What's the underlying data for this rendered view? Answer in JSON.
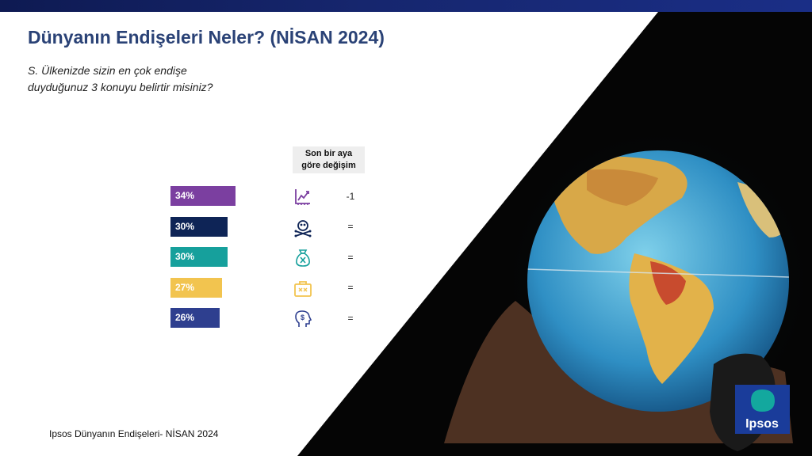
{
  "header": {
    "title": "Dünyanın Endişeleri Neler? (NİSAN 2024)",
    "question_line1": "S. Ülkenizde sizin en çok endişe",
    "question_line2": "duyduğunuz 3 konuyu belirtir misiniz?",
    "change_header_line1": "Son bir aya",
    "change_header_line2": "göre değişim"
  },
  "chart_data": {
    "type": "bar",
    "orientation": "horizontal",
    "categories": [
      "Enflasyon",
      "Suç",
      "Yoksulluk ve sosyal eşitsizlik",
      "İşsizlik",
      "Finansal/ siyasi yolsuzluk"
    ],
    "values": [
      34,
      30,
      30,
      27,
      26
    ],
    "value_labels": [
      "34%",
      "30%",
      "30%",
      "27%",
      "26%"
    ],
    "colors": [
      "#7b3fa0",
      "#0e2456",
      "#16a09c",
      "#f2c44f",
      "#2e3f8f"
    ],
    "changes": [
      "-1",
      "=",
      "=",
      "=",
      "="
    ],
    "icons": [
      "inflation-chart-icon",
      "skull-crossbones-icon",
      "money-bag-icon",
      "briefcase-icon",
      "head-dollar-icon"
    ],
    "icon_colors": [
      "#7b3fa0",
      "#0e2456",
      "#16a09c",
      "#f2c44f",
      "#2e3f8f"
    ],
    "xlim": [
      0,
      100
    ]
  },
  "footer": {
    "source": "Ipsos Dünyanın  Endişeleri- NİSAN 2024"
  },
  "logo": {
    "text": "Ipsos",
    "color": "#1a3c9a",
    "accent": "#13a89e"
  }
}
